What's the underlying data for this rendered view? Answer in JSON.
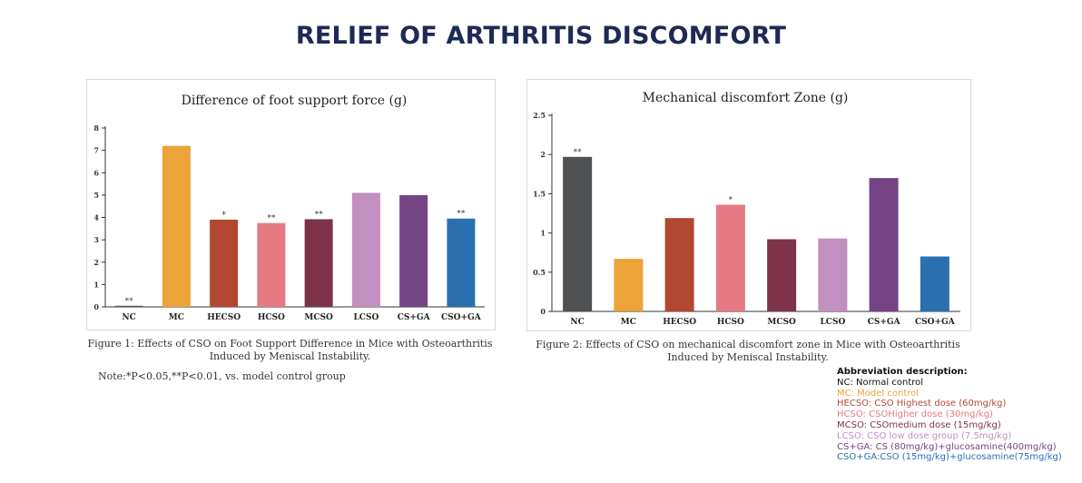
{
  "page_title": "RELIEF OF ARTHRITIS DISCOMFORT",
  "chart_data": [
    {
      "type": "bar",
      "title": "Difference of foot support force (g)",
      "categories": [
        "NC",
        "MC",
        "HECSO",
        "HCSO",
        "MCSO",
        "LCSO",
        "CS+GA",
        "CSO+GA"
      ],
      "values": [
        0.05,
        7.2,
        3.9,
        3.75,
        3.92,
        5.1,
        5.0,
        3.95
      ],
      "annotations": [
        "**",
        "",
        "*",
        "**",
        "**",
        "",
        "",
        "**"
      ],
      "colors": [
        "#5a5a5a",
        "#eba33a",
        "#b24832",
        "#e57a82",
        "#7d344a",
        "#c18fc0",
        "#744484",
        "#2a70b1"
      ],
      "ylim": [
        0,
        8
      ],
      "yticks": [
        "0",
        "1",
        "2",
        "3",
        "4",
        "5",
        "6",
        "7",
        "8"
      ],
      "xlabel": "",
      "ylabel": ""
    },
    {
      "type": "bar",
      "title": "Mechanical discomfort Zone (g)",
      "categories": [
        "NC",
        "MC",
        "HECSO",
        "HCSO",
        "MCSO",
        "LCSO",
        "CS+GA",
        "CSO+GA"
      ],
      "values": [
        1.97,
        0.67,
        1.19,
        1.36,
        0.92,
        0.93,
        1.7,
        0.7
      ],
      "annotations": [
        "**",
        "",
        "",
        "*",
        "",
        "",
        "",
        ""
      ],
      "colors": [
        "#4f5153",
        "#eba33a",
        "#b24832",
        "#e57a82",
        "#7d344a",
        "#c18fc0",
        "#744484",
        "#2a70b1"
      ],
      "ylim": [
        0,
        2.5
      ],
      "yticks": [
        "0",
        "0.5",
        "1",
        "1.5",
        "2",
        "2.5"
      ],
      "xlabel": "",
      "ylabel": ""
    }
  ],
  "captions": [
    "Figure 1: Effects of CSO on Foot Support Difference in Mice with Osteoarthritis Induced by Meniscal Instability.",
    "Figure 2: Effects of CSO on mechanical discomfort zone in Mice with Osteoarthritis Induced by Meniscal Instability."
  ],
  "note": "Note:*P<0.05,**P<0.01, vs. model control group",
  "abbreviation": {
    "title": "Abbreviation description:",
    "items": [
      {
        "text": "NC: Normal control",
        "color": "#111111"
      },
      {
        "text": "MC: Model control",
        "color": "#eba33a"
      },
      {
        "text": "HECSO: CSO Highest dose (60mg/kg)",
        "color": "#b24832"
      },
      {
        "text": "HCSO: CSOHigher dose (30mg/kg)",
        "color": "#e57a82"
      },
      {
        "text": "MCSO: CSOmedium dose (15mg/kg)",
        "color": "#7d344a"
      },
      {
        "text": "LCSO: CSO low dose group (7.5mg/kg)",
        "color": "#c18fc0"
      },
      {
        "text": "CS+GA: CS (80mg/kg)+glucosamine(400mg/kg)",
        "color": "#744484"
      },
      {
        "text": "CSO+GA:CSO (15mg/kg)+glucosamine(75mg/kg)",
        "color": "#2a70b1"
      }
    ]
  }
}
